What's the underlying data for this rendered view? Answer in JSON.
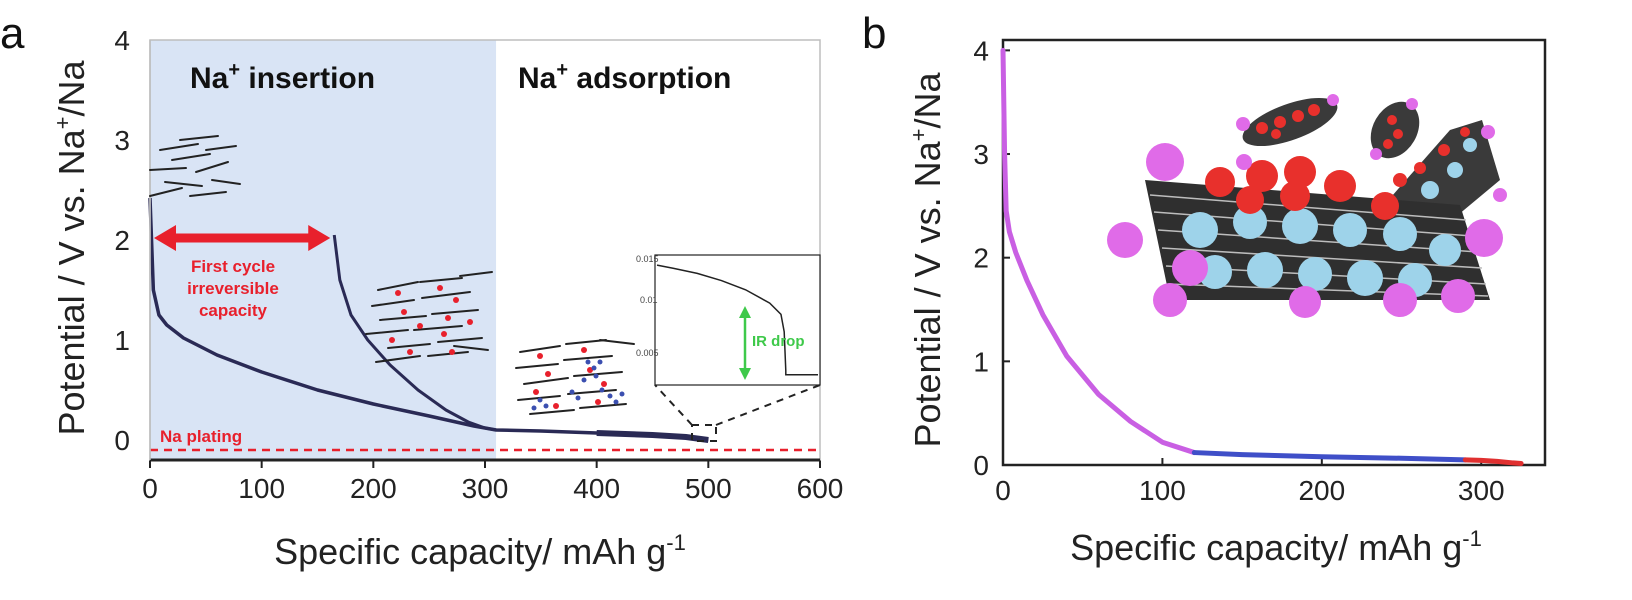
{
  "figure": {
    "label_a": "a",
    "label_b": "b"
  },
  "chart_data": [
    {
      "type": "line",
      "panel": "a",
      "xlabel": "Specific capacity/  mAh g",
      "xlabel_sup": "-1",
      "ylabel": "Potential / V vs. Na",
      "ylabel_sup": "+",
      "ylabel_tail": "/Na",
      "xlim": [
        0,
        600
      ],
      "ylim": [
        -0.2,
        4
      ],
      "xticks": [
        "0",
        "100",
        "200",
        "300",
        "400",
        "500",
        "600"
      ],
      "yticks": [
        "0",
        "1",
        "2",
        "3",
        "4"
      ],
      "regions": [
        {
          "label": "Na",
          "sup": "+",
          "tail": " insertion",
          "x_range": [
            0,
            310
          ],
          "color": "#d9e4f5"
        },
        {
          "label": "Na",
          "sup": "+",
          "tail": " adsorption",
          "x_range": [
            310,
            600
          ],
          "color": "#ffffff"
        }
      ],
      "series": [
        {
          "color": "#2a2a55",
          "x": [
            0,
            3,
            8,
            15,
            30,
            60,
            100,
            150,
            200,
            250,
            290,
            310,
            350,
            400,
            450,
            480,
            495,
            500
          ],
          "y": [
            2.42,
            1.5,
            1.25,
            1.15,
            1.02,
            0.85,
            0.68,
            0.5,
            0.36,
            0.24,
            0.14,
            0.1,
            0.09,
            0.07,
            0.05,
            0.03,
            0.01,
            0.0
          ]
        },
        {
          "color": "#2a2a55",
          "x": [
            165,
            170,
            180,
            195,
            215,
            240,
            265,
            285,
            300,
            310
          ],
          "y": [
            2.05,
            1.6,
            1.25,
            1.0,
            0.75,
            0.5,
            0.3,
            0.18,
            0.12,
            0.1
          ]
        }
      ],
      "reference_line": {
        "label": "Na plating",
        "y": -0.1,
        "color": "#e8202c"
      },
      "annotations": {
        "arrow": {
          "x_range": [
            0,
            165
          ],
          "y": 2.02,
          "color": "#e8202c"
        },
        "arrow_text": [
          "First cycle",
          "irreversible",
          "capacity"
        ],
        "inset": {
          "yticks": [
            "0.015",
            "0.01",
            "0.005"
          ],
          "label": "IR drop",
          "curve_x": [
            0,
            0.1,
            0.25,
            0.4,
            0.55,
            0.7,
            0.77,
            0.79,
            0.8,
            0.8,
            1.0
          ],
          "curve_y": [
            0.0145,
            0.0142,
            0.0137,
            0.013,
            0.0121,
            0.0108,
            0.0097,
            0.008,
            0.0042,
            0.0038,
            0.0038
          ]
        }
      }
    },
    {
      "type": "line",
      "panel": "b",
      "xlabel": "Specific capacity/  mAh g",
      "xlabel_sup": "-1",
      "ylabel": "Potential / V vs. Na",
      "ylabel_sup": "+",
      "ylabel_tail": "/Na",
      "xlim": [
        0,
        340
      ],
      "ylim": [
        0,
        4.1
      ],
      "xticks": [
        "0",
        "100",
        "200",
        "300"
      ],
      "yticks": [
        "0",
        "1",
        "2",
        "3",
        "4"
      ],
      "series": [
        {
          "color": "#c95fe3",
          "x": [
            0,
            1,
            2,
            4,
            8,
            15,
            25,
            40,
            60,
            80,
            100,
            120
          ],
          "y": [
            4.0,
            3.0,
            2.45,
            2.25,
            2.05,
            1.78,
            1.45,
            1.05,
            0.68,
            0.42,
            0.22,
            0.12
          ]
        },
        {
          "color": "#3f4fc8",
          "x": [
            120,
            150,
            200,
            250,
            290
          ],
          "y": [
            0.12,
            0.1,
            0.08,
            0.065,
            0.05
          ]
        },
        {
          "color": "#e03030",
          "x": [
            290,
            300,
            310,
            320,
            325
          ],
          "y": [
            0.05,
            0.045,
            0.035,
            0.02,
            0.015
          ]
        }
      ]
    }
  ],
  "colors": {
    "insertion_bg": "#d9e4f5",
    "curve_a": "#2a2a55",
    "na_plating": "#e8202c",
    "ir_drop": "#3ec94a",
    "sodium_atom": "#e06be8",
    "red_atom": "#e8302c",
    "blue_atom": "#9ed3ea"
  }
}
